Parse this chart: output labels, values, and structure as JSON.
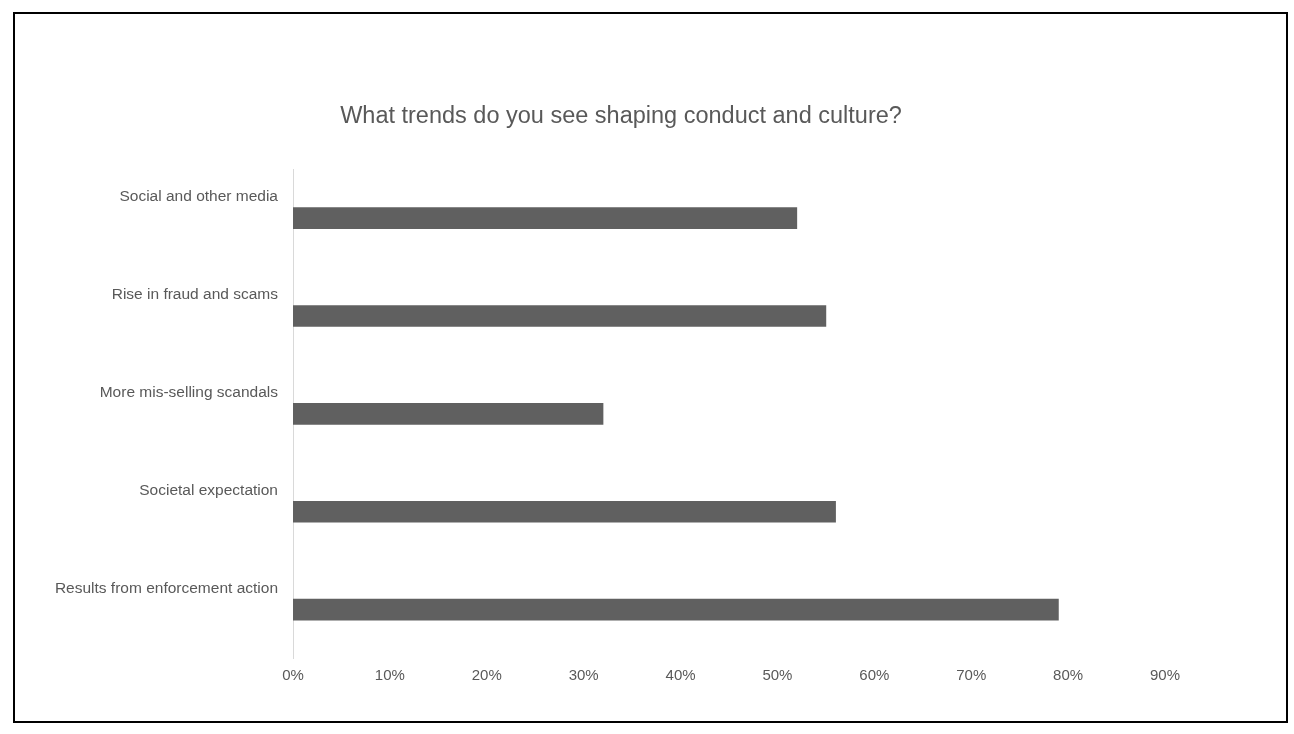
{
  "chart_data": {
    "type": "bar",
    "orientation": "horizontal",
    "title": "What trends do you see shaping conduct and culture?",
    "categories": [
      "Social and other media",
      "Rise in fraud and scams",
      "More mis-selling scandals",
      "Societal expectation",
      "Results from enforcement action"
    ],
    "values": [
      52,
      55,
      32,
      56,
      79
    ],
    "color": "#606060",
    "xlim": [
      0,
      90
    ],
    "xticks": [
      {
        "value": 0,
        "label": "0%"
      },
      {
        "value": 10,
        "label": "10%"
      },
      {
        "value": 20,
        "label": "20%"
      },
      {
        "value": 30,
        "label": "30%"
      },
      {
        "value": 40,
        "label": "40%"
      },
      {
        "value": 50,
        "label": "50%"
      },
      {
        "value": 60,
        "label": "60%"
      },
      {
        "value": 70,
        "label": "70%"
      },
      {
        "value": 80,
        "label": "80%"
      },
      {
        "value": 90,
        "label": "90%"
      }
    ]
  }
}
